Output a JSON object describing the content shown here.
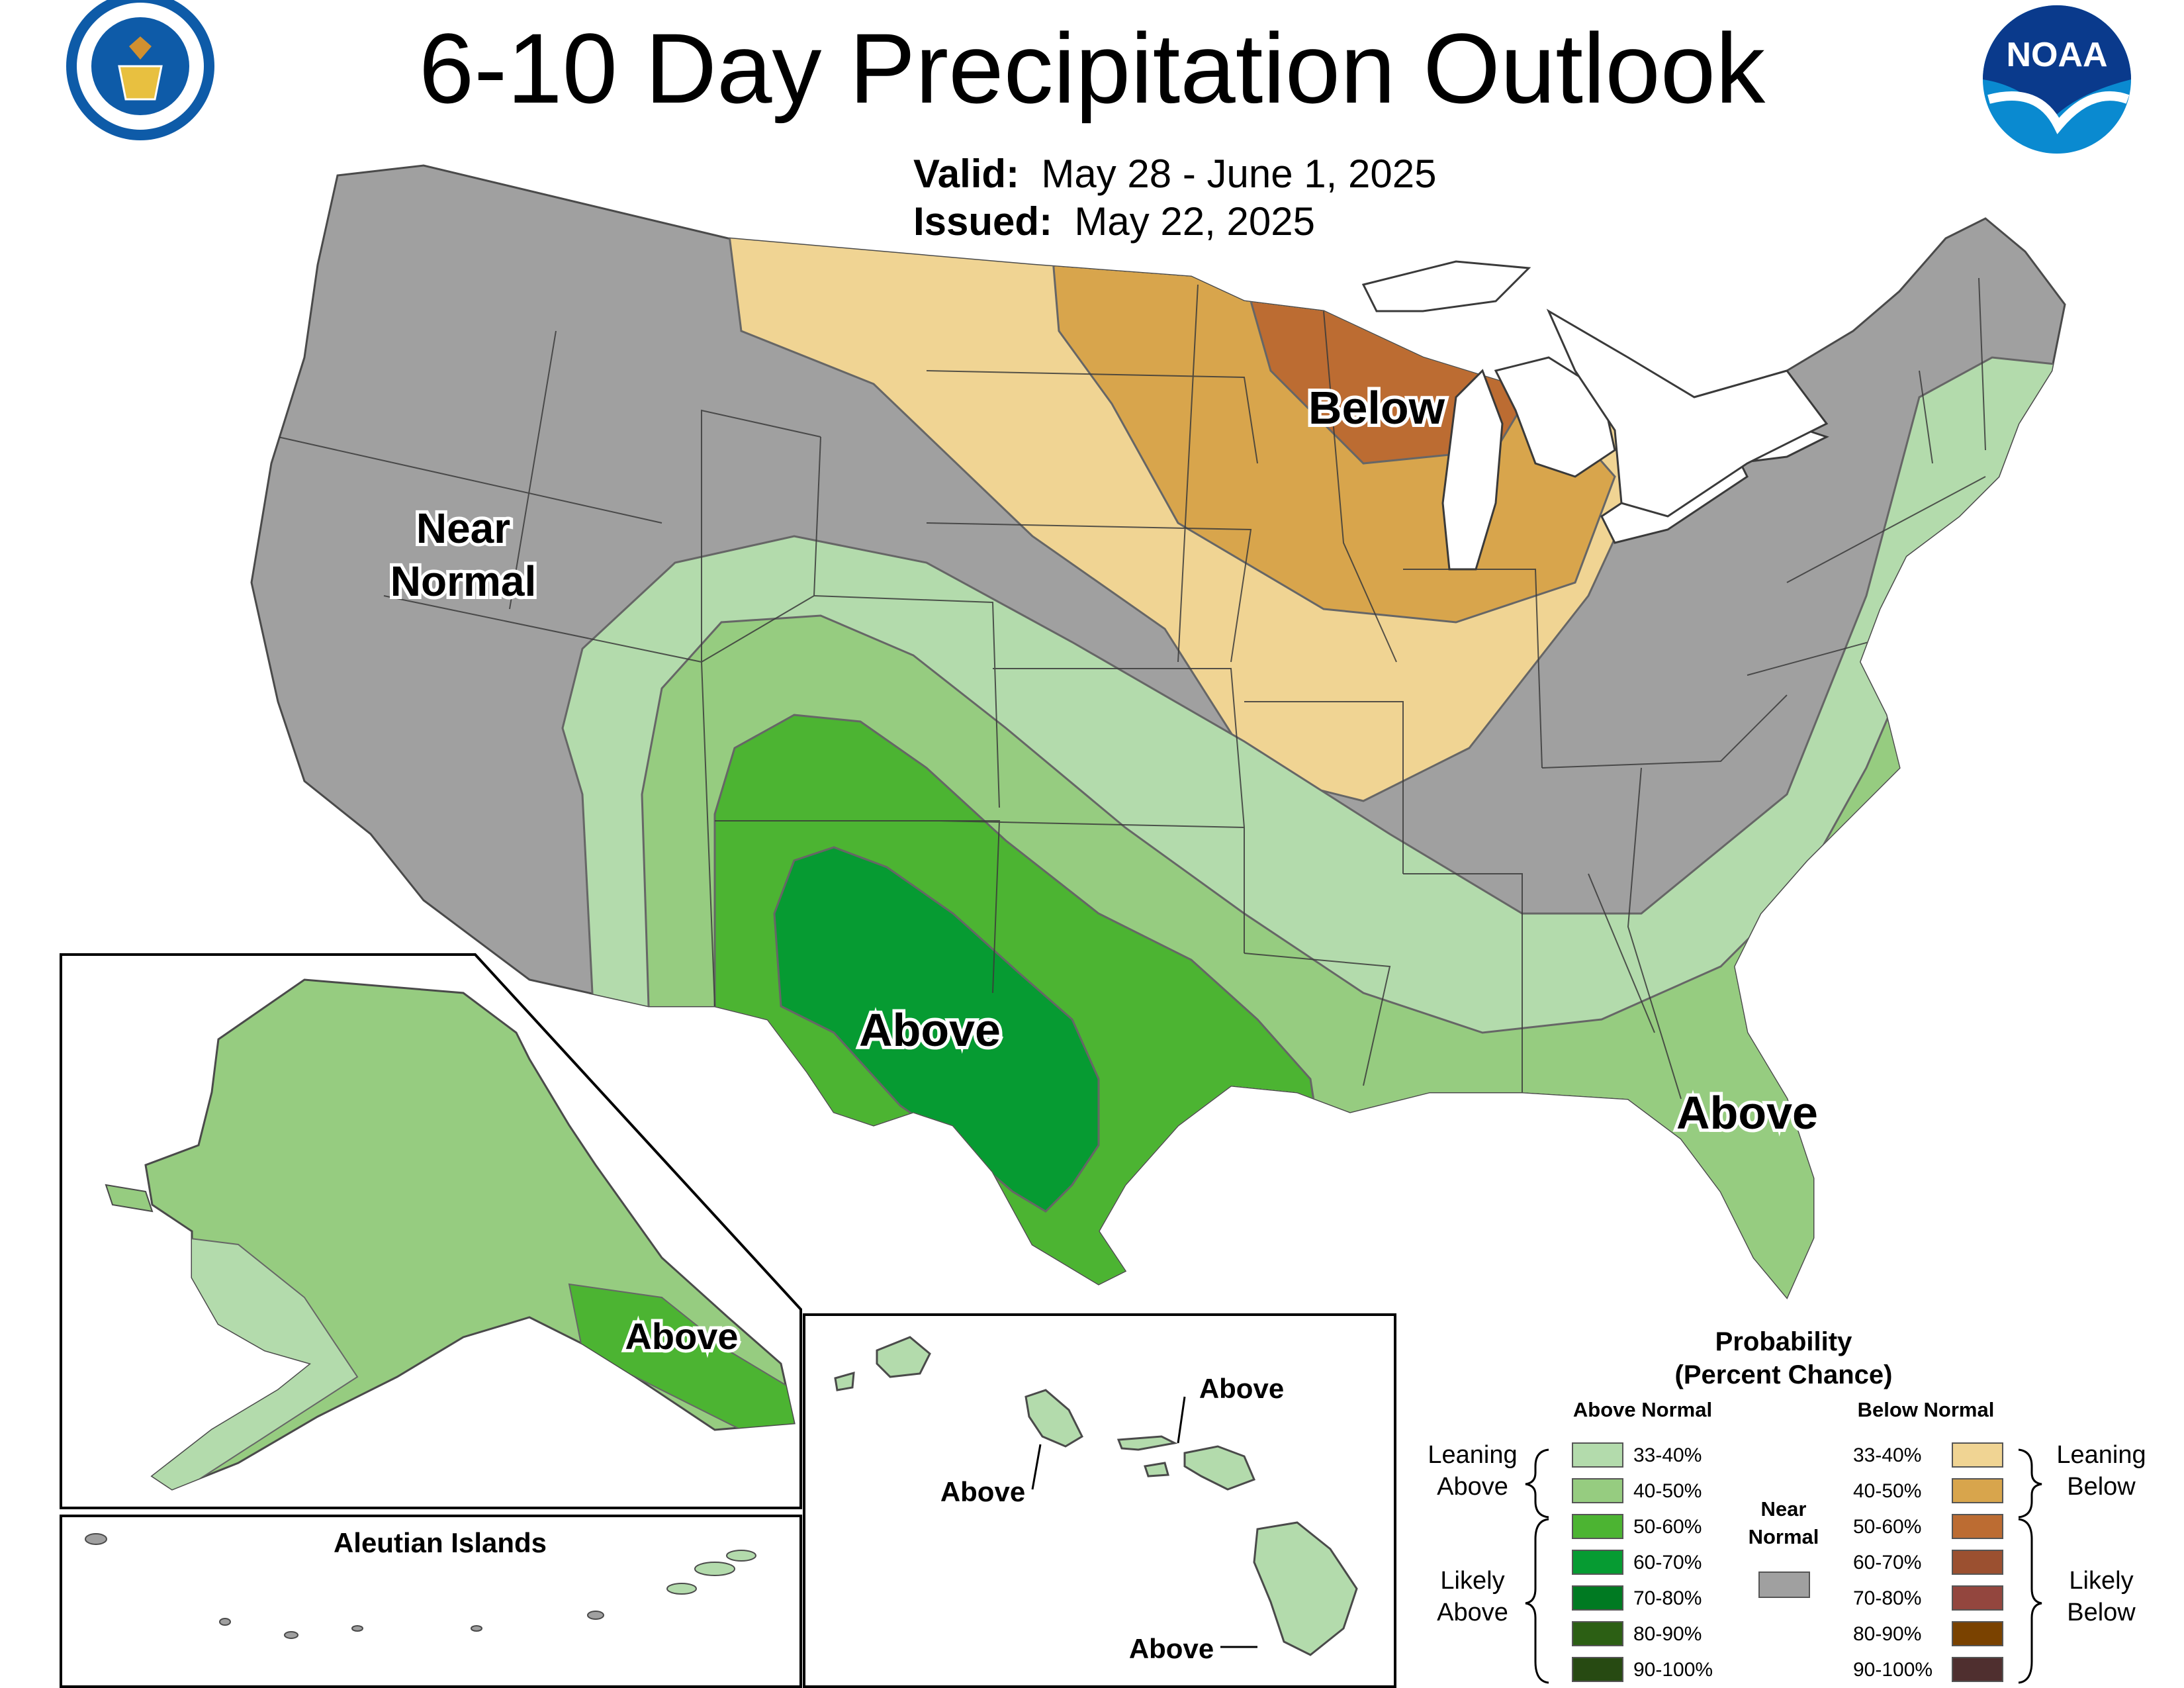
{
  "header": {
    "title": "6-10 Day Precipitation Outlook",
    "valid_label": "Valid:",
    "valid_value": "May 28 - June 1, 2025",
    "issued_label": "Issued:",
    "issued_value": "May 22, 2025"
  },
  "logos": {
    "left": "department-of-commerce-seal",
    "right": "noaa-logo",
    "noaa_text": "NOAA"
  },
  "map_labels": {
    "near_normal_line1": "Near",
    "near_normal_line2": "Normal",
    "below": "Below",
    "above_texas": "Above",
    "above_southeast": "Above",
    "above_alaska": "Above",
    "above_hawaii_1": "Above",
    "above_hawaii_2": "Above",
    "above_hawaii_3": "Above",
    "aleutian_title": "Aleutian Islands"
  },
  "legend": {
    "title_line1": "Probability",
    "title_line2": "(Percent Chance)",
    "above_header": "Above Normal",
    "below_header": "Below Normal",
    "leaning_above_1": "Leaning",
    "leaning_above_2": "Above",
    "likely_above_1": "Likely",
    "likely_above_2": "Above",
    "leaning_below_1": "Leaning",
    "leaning_below_2": "Below",
    "likely_below_1": "Likely",
    "likely_below_2": "Below",
    "near_normal_1": "Near",
    "near_normal_2": "Normal",
    "near_normal_color": "#a0a0a0",
    "above": [
      {
        "label": "33-40%",
        "color": "#b3dbac"
      },
      {
        "label": "40-50%",
        "color": "#96cc80"
      },
      {
        "label": "50-60%",
        "color": "#4cb432"
      },
      {
        "label": "60-70%",
        "color": "#069b32"
      },
      {
        "label": "70-80%",
        "color": "#007a22"
      },
      {
        "label": "80-90%",
        "color": "#2c5f14"
      },
      {
        "label": "90-100%",
        "color": "#274a12"
      }
    ],
    "below": [
      {
        "label": "33-40%",
        "color": "#f0d493"
      },
      {
        "label": "40-50%",
        "color": "#d8a54c"
      },
      {
        "label": "50-60%",
        "color": "#bc6c32"
      },
      {
        "label": "60-70%",
        "color": "#9b5030"
      },
      {
        "label": "70-80%",
        "color": "#93463e"
      },
      {
        "label": "80-90%",
        "color": "#7a4200"
      },
      {
        "label": "90-100%",
        "color": "#4f2f2f"
      }
    ]
  }
}
